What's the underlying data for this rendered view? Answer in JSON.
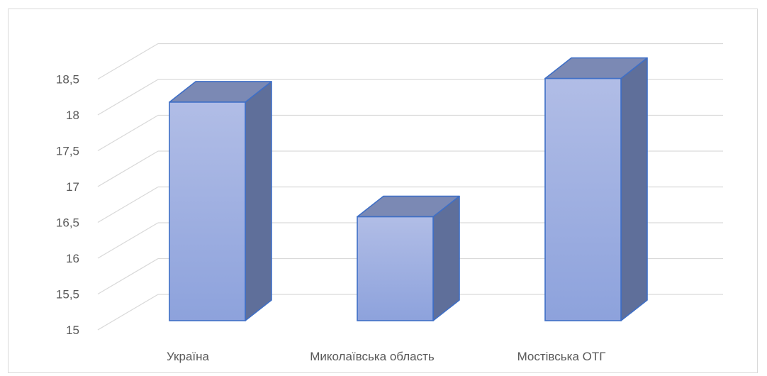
{
  "chart_data": {
    "type": "bar",
    "style": "3d-clustered-column",
    "title": "",
    "xlabel": "",
    "ylabel": "",
    "categories": [
      "Україна",
      "Миколаївська область",
      "Мостівська ОТГ"
    ],
    "values": [
      18.05,
      16.45,
      18.38
    ],
    "ylim": [
      15,
      18.5
    ],
    "y_ticks": [
      "15",
      "15,5",
      "16",
      "16,5",
      "17",
      "17,5",
      "18",
      "18,5"
    ],
    "y_tick_values": [
      15,
      15.5,
      16,
      16.5,
      17,
      17.5,
      18,
      18.5
    ],
    "grid": true,
    "legend": "none",
    "colors": {
      "bar_front_top": "#b1bde6",
      "bar_front_bottom": "#8da2dc",
      "bar_side": "#5f6f9a",
      "bar_top": "#7b89b4",
      "bar_edge": "#3f6fc6",
      "grid": "#d9d9d9",
      "text": "#595959"
    }
  }
}
